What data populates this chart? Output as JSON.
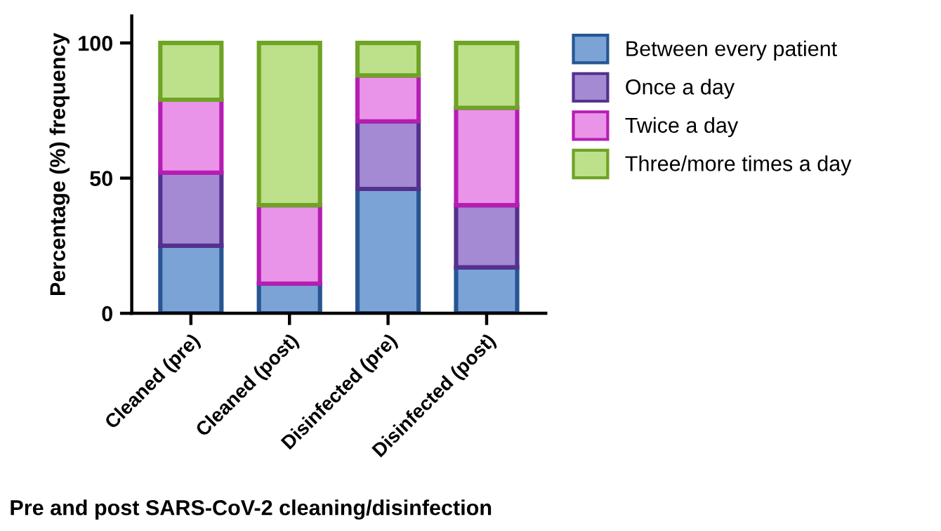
{
  "chart_data": {
    "type": "bar",
    "stacked": true,
    "xlabel": "Pre and post SARS-CoV-2 cleaning/disinfection",
    "ylabel": "Percentage (%) frequency",
    "categories": [
      "Cleaned (pre)",
      "Cleaned (post)",
      "Disinfected (pre)",
      "Disinfected (post)"
    ],
    "series": [
      {
        "name": "Between every patient",
        "color": "#7ba3d6",
        "values": [
          25,
          11,
          46,
          17
        ]
      },
      {
        "name": "Once a day",
        "color": "#a48ad2",
        "values": [
          27,
          0,
          25,
          23
        ]
      },
      {
        "name": "Twice a day",
        "color": "#e994e8",
        "values": [
          27,
          29,
          17,
          36
        ]
      },
      {
        "name": "Three/more times a day",
        "color": "#bde08a",
        "values": [
          21,
          60,
          12,
          24
        ]
      }
    ],
    "ylim": [
      0,
      110
    ],
    "yticks": [
      0,
      50,
      100
    ],
    "grid": false,
    "legend": "right"
  }
}
